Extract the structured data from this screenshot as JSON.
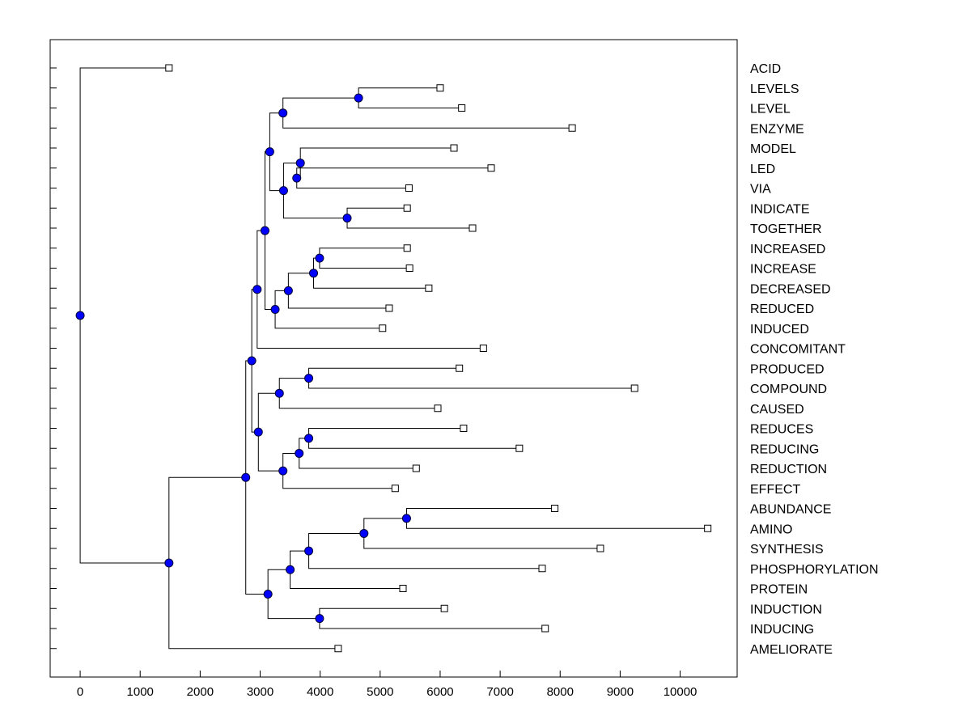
{
  "chart_data": {
    "type": "dendrogram",
    "title": "",
    "xlabel": "",
    "ylabel": "",
    "xlim": [
      -500,
      10950
    ],
    "xticks": [
      0,
      1000,
      2000,
      3000,
      4000,
      5000,
      6000,
      7000,
      8000,
      9000,
      10000
    ],
    "xtick_labels": [
      "0",
      "1000",
      "2000",
      "3000",
      "4000",
      "5000",
      "6000",
      "7000",
      "8000",
      "9000",
      "10000"
    ],
    "colors": {
      "node": "#0000ff",
      "line": "#000000",
      "leaf": "#ffffff"
    },
    "leaves": [
      {
        "label": "ACID",
        "x": 1480
      },
      {
        "label": "LEVELS",
        "x": 6000
      },
      {
        "label": "LEVEL",
        "x": 6360
      },
      {
        "label": "ENZYME",
        "x": 8200
      },
      {
        "label": "MODEL",
        "x": 6230
      },
      {
        "label": "LED",
        "x": 6850
      },
      {
        "label": "VIA",
        "x": 5480
      },
      {
        "label": "INDICATE",
        "x": 5450
      },
      {
        "label": "TOGETHER",
        "x": 6540
      },
      {
        "label": "INCREASED",
        "x": 5450
      },
      {
        "label": "INCREASE",
        "x": 5490
      },
      {
        "label": "DECREASED",
        "x": 5810
      },
      {
        "label": "REDUCED",
        "x": 5150
      },
      {
        "label": "INDUCED",
        "x": 5040
      },
      {
        "label": "CONCOMITANT",
        "x": 6720
      },
      {
        "label": "PRODUCED",
        "x": 6320
      },
      {
        "label": "COMPOUND",
        "x": 9240
      },
      {
        "label": "CAUSED",
        "x": 5960
      },
      {
        "label": "REDUCES",
        "x": 6390
      },
      {
        "label": "REDUCING",
        "x": 7320
      },
      {
        "label": "REDUCTION",
        "x": 5600
      },
      {
        "label": "EFFECT",
        "x": 5250
      },
      {
        "label": "ABUNDANCE",
        "x": 7910
      },
      {
        "label": "AMINO",
        "x": 10460
      },
      {
        "label": "SYNTHESIS",
        "x": 8670
      },
      {
        "label": "PHOSPHORYLATION",
        "x": 7700
      },
      {
        "label": "PROTEIN",
        "x": 5380
      },
      {
        "label": "INDUCTION",
        "x": 6070
      },
      {
        "label": "INDUCING",
        "x": 7750
      },
      {
        "label": "AMELIORATE",
        "x": 4300
      }
    ],
    "merges": [
      {
        "x": 4640,
        "children": [
          "L1",
          "L2"
        ]
      },
      {
        "x": 3380,
        "children": [
          "M0",
          "L3"
        ]
      },
      {
        "x": 3610,
        "children": [
          "L5",
          "L6"
        ]
      },
      {
        "x": 3670,
        "children": [
          "L4",
          "M2"
        ]
      },
      {
        "x": 4450,
        "children": [
          "L7",
          "L8"
        ]
      },
      {
        "x": 3390,
        "children": [
          "M3",
          "M4"
        ]
      },
      {
        "x": 3160,
        "children": [
          "M1",
          "M5"
        ]
      },
      {
        "x": 3990,
        "children": [
          "L9",
          "L10"
        ]
      },
      {
        "x": 3890,
        "children": [
          "M7",
          "L11"
        ]
      },
      {
        "x": 3470,
        "children": [
          "M8",
          "L12"
        ]
      },
      {
        "x": 3250,
        "children": [
          "M9",
          "L13"
        ]
      },
      {
        "x": 3080,
        "children": [
          "M6",
          "M10"
        ]
      },
      {
        "x": 2950,
        "children": [
          "M11",
          "L14"
        ]
      },
      {
        "x": 3810,
        "children": [
          "L15",
          "L16"
        ]
      },
      {
        "x": 3320,
        "children": [
          "M13",
          "L17"
        ]
      },
      {
        "x": 3810,
        "children": [
          "L18",
          "L19"
        ]
      },
      {
        "x": 3650,
        "children": [
          "M15",
          "L20"
        ]
      },
      {
        "x": 3380,
        "children": [
          "M16",
          "L21"
        ]
      },
      {
        "x": 2970,
        "children": [
          "M14",
          "M17"
        ]
      },
      {
        "x": 2860,
        "children": [
          "M12",
          "M18"
        ]
      },
      {
        "x": 5440,
        "children": [
          "L22",
          "L23"
        ]
      },
      {
        "x": 4730,
        "children": [
          "M20",
          "L24"
        ]
      },
      {
        "x": 3810,
        "children": [
          "M21",
          "L25"
        ]
      },
      {
        "x": 3500,
        "children": [
          "M22",
          "L26"
        ]
      },
      {
        "x": 3990,
        "children": [
          "L27",
          "L28"
        ]
      },
      {
        "x": 3130,
        "children": [
          "M23",
          "M24"
        ]
      },
      {
        "x": 2760,
        "children": [
          "M19",
          "M25"
        ]
      },
      {
        "x": 1480,
        "children": [
          "M26",
          "L29"
        ]
      },
      {
        "x": 0,
        "children": [
          "L0",
          "M27"
        ]
      }
    ]
  }
}
